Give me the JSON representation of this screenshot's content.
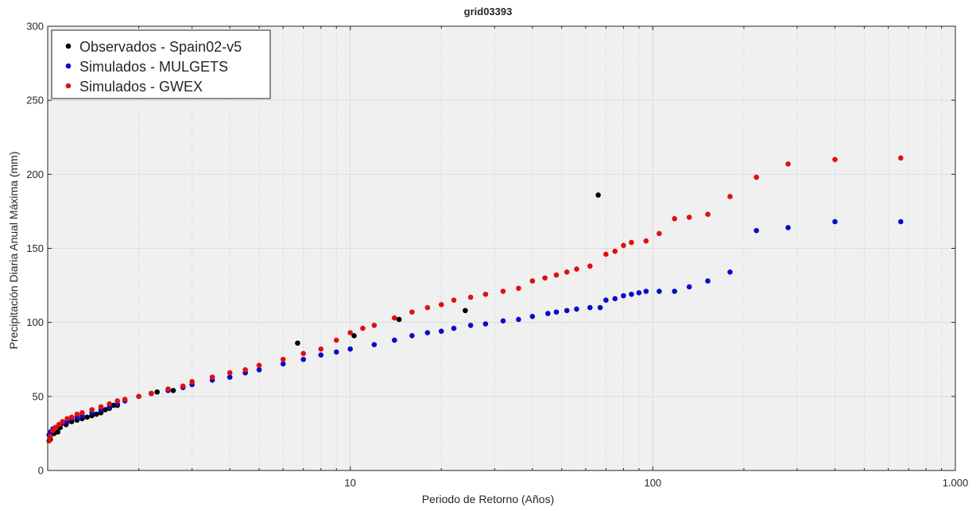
{
  "chart_data": {
    "type": "scatter",
    "title": "grid03393",
    "xlabel": "Periodo de Retorno (Años)",
    "ylabel": "Precipitación Diaria Anual Máxima (mm)",
    "xscale": "log",
    "xlim": [
      1,
      1000
    ],
    "ylim": [
      0,
      300
    ],
    "xticks": [
      {
        "value": 10,
        "label": "10"
      },
      {
        "value": 100,
        "label": "100"
      },
      {
        "value": 1000,
        "label": "1.000"
      }
    ],
    "yticks": [
      {
        "value": 0,
        "label": "0"
      },
      {
        "value": 50,
        "label": "50"
      },
      {
        "value": 100,
        "label": "100"
      },
      {
        "value": 150,
        "label": "150"
      },
      {
        "value": 200,
        "label": "200"
      },
      {
        "value": 250,
        "label": "250"
      },
      {
        "value": 300,
        "label": "300"
      }
    ],
    "grid": true,
    "minor_grid": true,
    "legend_position": "top-left",
    "series": [
      {
        "name": "Observados - Spain02-v5",
        "color": "#000000",
        "points": [
          [
            1.02,
            21
          ],
          [
            1.05,
            25
          ],
          [
            1.08,
            26
          ],
          [
            1.1,
            29
          ],
          [
            1.15,
            31
          ],
          [
            1.2,
            33
          ],
          [
            1.25,
            34
          ],
          [
            1.3,
            35
          ],
          [
            1.35,
            36
          ],
          [
            1.4,
            37
          ],
          [
            1.45,
            38
          ],
          [
            1.5,
            39
          ],
          [
            1.55,
            41
          ],
          [
            1.6,
            42
          ],
          [
            1.65,
            44
          ],
          [
            1.7,
            44
          ],
          [
            2.2,
            52
          ],
          [
            2.3,
            53
          ],
          [
            2.6,
            54
          ],
          [
            4.5,
            66
          ],
          [
            6.7,
            86
          ],
          [
            10.3,
            91
          ],
          [
            14.5,
            102
          ],
          [
            24,
            108
          ],
          [
            66,
            186
          ]
        ]
      },
      {
        "name": "Simulados - MULGETS",
        "color": "#0a0acc",
        "points": [
          [
            1.01,
            24
          ],
          [
            1.02,
            26
          ],
          [
            1.04,
            28
          ],
          [
            1.06,
            29
          ],
          [
            1.09,
            31
          ],
          [
            1.12,
            32
          ],
          [
            1.16,
            33
          ],
          [
            1.2,
            35
          ],
          [
            1.25,
            36
          ],
          [
            1.3,
            37
          ],
          [
            1.4,
            39
          ],
          [
            1.5,
            41
          ],
          [
            1.6,
            43
          ],
          [
            1.7,
            45
          ],
          [
            1.8,
            47
          ],
          [
            2,
            50
          ],
          [
            2.2,
            52
          ],
          [
            2.5,
            54
          ],
          [
            2.8,
            56
          ],
          [
            3,
            58
          ],
          [
            3.5,
            61
          ],
          [
            4,
            63
          ],
          [
            4.5,
            66
          ],
          [
            5,
            68
          ],
          [
            6,
            72
          ],
          [
            7,
            75
          ],
          [
            8,
            78
          ],
          [
            9,
            80
          ],
          [
            10,
            82
          ],
          [
            12,
            85
          ],
          [
            14,
            88
          ],
          [
            16,
            91
          ],
          [
            18,
            93
          ],
          [
            20,
            94
          ],
          [
            22,
            96
          ],
          [
            25,
            98
          ],
          [
            28,
            99
          ],
          [
            32,
            101
          ],
          [
            36,
            102
          ],
          [
            40,
            104
          ],
          [
            45,
            106
          ],
          [
            48,
            107
          ],
          [
            52,
            108
          ],
          [
            56,
            109
          ],
          [
            62,
            110
          ],
          [
            67,
            110
          ],
          [
            70,
            115
          ],
          [
            75,
            116
          ],
          [
            80,
            118
          ],
          [
            85,
            119
          ],
          [
            90,
            120
          ],
          [
            95,
            121
          ],
          [
            105,
            121
          ],
          [
            118,
            121
          ],
          [
            132,
            124
          ],
          [
            152,
            128
          ],
          [
            180,
            134
          ],
          [
            220,
            162
          ],
          [
            280,
            164
          ],
          [
            400,
            168
          ],
          [
            660,
            168
          ]
        ]
      },
      {
        "name": "Simulados - GWEX",
        "color": "#e01010",
        "points": [
          [
            1.01,
            20
          ],
          [
            1.02,
            23
          ],
          [
            1.04,
            27
          ],
          [
            1.06,
            29
          ],
          [
            1.09,
            31
          ],
          [
            1.12,
            33
          ],
          [
            1.16,
            35
          ],
          [
            1.2,
            36
          ],
          [
            1.25,
            38
          ],
          [
            1.3,
            39
          ],
          [
            1.4,
            41
          ],
          [
            1.5,
            43
          ],
          [
            1.6,
            45
          ],
          [
            1.7,
            47
          ],
          [
            1.8,
            48
          ],
          [
            2,
            50
          ],
          [
            2.2,
            52
          ],
          [
            2.5,
            55
          ],
          [
            2.8,
            57
          ],
          [
            3,
            60
          ],
          [
            3.5,
            63
          ],
          [
            4,
            66
          ],
          [
            4.5,
            68
          ],
          [
            5,
            71
          ],
          [
            6,
            75
          ],
          [
            7,
            79
          ],
          [
            8,
            82
          ],
          [
            9,
            88
          ],
          [
            10,
            93
          ],
          [
            11,
            96
          ],
          [
            12,
            98
          ],
          [
            14,
            103
          ],
          [
            16,
            107
          ],
          [
            18,
            110
          ],
          [
            20,
            112
          ],
          [
            22,
            115
          ],
          [
            25,
            117
          ],
          [
            28,
            119
          ],
          [
            32,
            121
          ],
          [
            36,
            123
          ],
          [
            40,
            128
          ],
          [
            44,
            130
          ],
          [
            48,
            132
          ],
          [
            52,
            134
          ],
          [
            56,
            136
          ],
          [
            62,
            138
          ],
          [
            70,
            146
          ],
          [
            75,
            148
          ],
          [
            80,
            152
          ],
          [
            85,
            154
          ],
          [
            95,
            155
          ],
          [
            105,
            160
          ],
          [
            118,
            170
          ],
          [
            132,
            171
          ],
          [
            152,
            173
          ],
          [
            180,
            185
          ],
          [
            220,
            198
          ],
          [
            280,
            207
          ],
          [
            400,
            210
          ],
          [
            660,
            211
          ]
        ]
      }
    ]
  }
}
